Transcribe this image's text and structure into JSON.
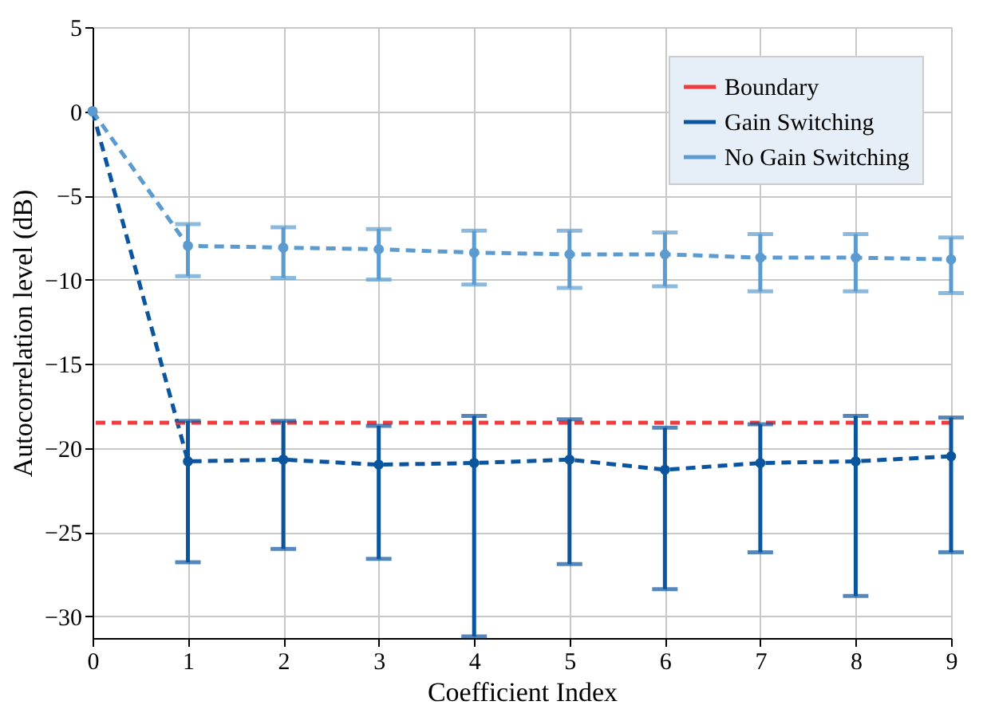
{
  "chart_data": {
    "type": "line",
    "xlabel": "Coefficient Index",
    "ylabel": "Autocorrelation level (dB)",
    "x": [
      0,
      1,
      2,
      3,
      4,
      5,
      6,
      7,
      8,
      9
    ],
    "series": [
      {
        "name": "Gain Switching",
        "color": "#0b559f",
        "values": [
          0,
          -20.8,
          -20.7,
          -21.0,
          -20.9,
          -20.7,
          -21.3,
          -20.9,
          -20.8,
          -20.5
        ],
        "errors": [
          null,
          [
            -26.8,
            -18.4
          ],
          [
            -26.0,
            -18.4
          ],
          [
            -26.6,
            -18.7
          ],
          [
            -31.2,
            -18.1
          ],
          [
            -26.9,
            -18.3
          ],
          [
            -28.4,
            -18.8
          ],
          [
            -26.2,
            -18.6
          ],
          [
            -28.8,
            -18.1
          ],
          [
            -26.2,
            -18.2
          ]
        ]
      },
      {
        "name": "No Gain Switching",
        "color": "#5b9bd0",
        "values": [
          0,
          -8.0,
          -8.1,
          -8.2,
          -8.4,
          -8.5,
          -8.5,
          -8.7,
          -8.7,
          -8.8
        ],
        "errors": [
          null,
          [
            -9.8,
            -6.7
          ],
          [
            -9.9,
            -6.9
          ],
          [
            -10.0,
            -7.0
          ],
          [
            -10.3,
            -7.1
          ],
          [
            -10.5,
            -7.1
          ],
          [
            -10.4,
            -7.2
          ],
          [
            -10.7,
            -7.3
          ],
          [
            -10.7,
            -7.3
          ],
          [
            -10.8,
            -7.5
          ]
        ]
      }
    ],
    "ref_lines": [
      {
        "axis": "y",
        "value": -18.5,
        "label": "Boundary",
        "color": "#f03c3c",
        "line_style": "dashed"
      }
    ],
    "xlim": [
      0,
      9
    ],
    "xticks": [
      0,
      1,
      2,
      3,
      4,
      5,
      6,
      7,
      8,
      9
    ],
    "ylim": [
      -31.3,
      5
    ],
    "yticks": [
      -30,
      -25,
      -20,
      -15,
      -10,
      -5,
      0,
      5
    ],
    "grid": true,
    "legend": "top right",
    "marker": "circle",
    "line_style": "dashed"
  }
}
